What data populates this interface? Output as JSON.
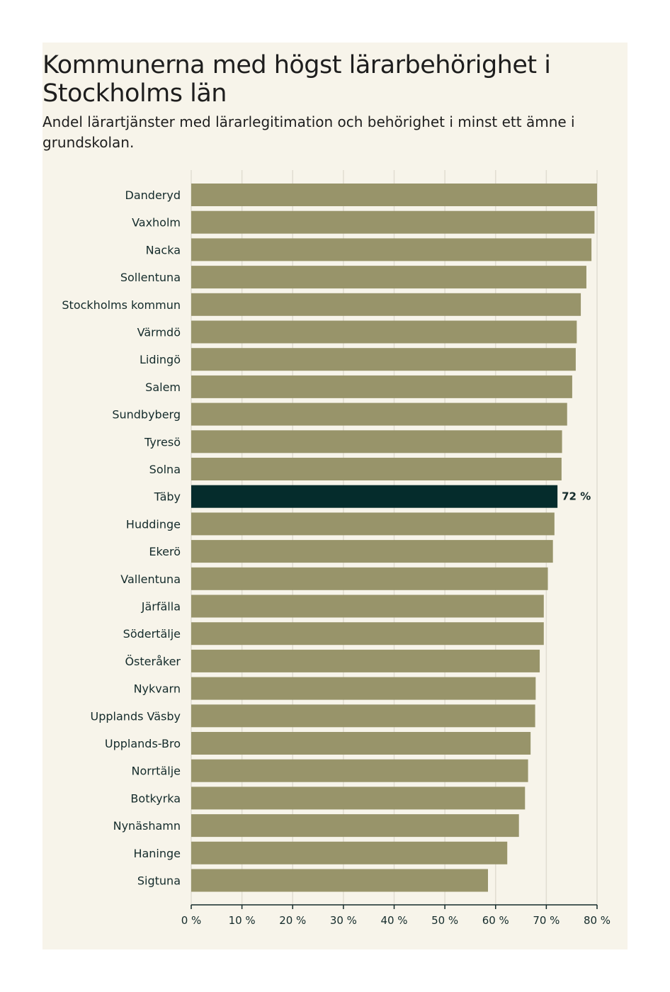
{
  "colors": {
    "background": "#f7f4ea",
    "bar": "#98946a",
    "highlight": "#052c2c",
    "grid": "#e1ddd1",
    "text": "#142b2b"
  },
  "chart_data": {
    "type": "bar",
    "orientation": "horizontal",
    "title": "Kommunerna med högst lärarbehörighet i Stockholms län",
    "subtitle": "Andel lärartjänster med lärarlegitimation och behörighet i minst ett ämne i grundskolan.",
    "xlabel": "",
    "ylabel": "",
    "xlim": [
      0,
      80
    ],
    "grid": true,
    "categories": [
      "Danderyd",
      "Vaxholm",
      "Nacka",
      "Sollentuna",
      "Stockholms kommun",
      "Värmdö",
      "Lidingö",
      "Salem",
      "Sundbyberg",
      "Tyresö",
      "Solna",
      "Täby",
      "Huddinge",
      "Ekerö",
      "Vallentuna",
      "Järfälla",
      "Södertälje",
      "Österåker",
      "Nykvarn",
      "Upplands Väsby",
      "Upplands-Bro",
      "Norrtälje",
      "Botkyrka",
      "Nynäshamn",
      "Haninge",
      "Sigtuna"
    ],
    "values": [
      80,
      79.5,
      78.9,
      77.9,
      76.8,
      76,
      75.8,
      75.1,
      74.1,
      73.1,
      73,
      72.2,
      71.6,
      71.3,
      70.3,
      69.5,
      69.5,
      68.7,
      67.9,
      67.8,
      66.9,
      66.4,
      65.8,
      64.6,
      62.3,
      58.5
    ],
    "highlight": "Täby",
    "highlight_label": "72 %",
    "ticks": [
      0,
      10,
      20,
      30,
      40,
      50,
      60,
      70,
      80
    ],
    "tick_labels": [
      "0 %",
      "10 %",
      "20 %",
      "30 %",
      "40 %",
      "50 %",
      "60 %",
      "70 %",
      "80 %"
    ]
  }
}
